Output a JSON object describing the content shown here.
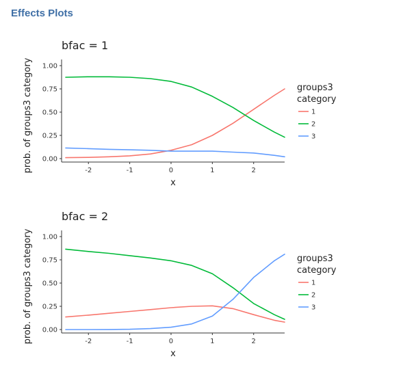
{
  "page": {
    "title": "Effects Plots"
  },
  "chart_data": [
    {
      "type": "line",
      "title": "bfac = 1",
      "xlabel": "x",
      "ylabel": "prob. of groups3 category",
      "xlim": [
        -2.65,
        2.75
      ],
      "ylim": [
        0,
        1
      ],
      "xticks": [
        -2,
        -1,
        0,
        1,
        2
      ],
      "xtick_labels": [
        "-2",
        "-1",
        "0",
        "1",
        "2"
      ],
      "yticks": [
        0,
        0.25,
        0.5,
        0.75,
        1
      ],
      "ytick_labels": [
        "0.00",
        "0.25",
        "0.50",
        "0.75",
        "1.00"
      ],
      "grid": false,
      "legend": {
        "title_lines": [
          "groups3",
          "category"
        ],
        "placement": "right"
      },
      "x": [
        -2.55,
        -2.0,
        -1.5,
        -1.0,
        -0.5,
        0.0,
        0.5,
        1.0,
        1.5,
        2.0,
        2.5,
        2.75
      ],
      "series": [
        {
          "name": "1",
          "color": "#f8766d",
          "values": [
            0.01,
            0.013,
            0.02,
            0.03,
            0.05,
            0.09,
            0.15,
            0.25,
            0.38,
            0.53,
            0.68,
            0.75
          ]
        },
        {
          "name": "2",
          "color": "#00ba38",
          "values": [
            0.875,
            0.88,
            0.88,
            0.875,
            0.86,
            0.83,
            0.77,
            0.67,
            0.55,
            0.41,
            0.285,
            0.23
          ]
        },
        {
          "name": "3",
          "color": "#619cff",
          "values": [
            0.115,
            0.107,
            0.1,
            0.095,
            0.09,
            0.08,
            0.08,
            0.08,
            0.07,
            0.06,
            0.035,
            0.02
          ]
        }
      ]
    },
    {
      "type": "line",
      "title": "bfac = 2",
      "xlabel": "x",
      "ylabel": "prob. of groups3 category",
      "xlim": [
        -2.65,
        2.75
      ],
      "ylim": [
        0,
        1
      ],
      "xticks": [
        -2,
        -1,
        0,
        1,
        2
      ],
      "xtick_labels": [
        "-2",
        "-1",
        "0",
        "1",
        "2"
      ],
      "yticks": [
        0,
        0.25,
        0.5,
        0.75,
        1
      ],
      "ytick_labels": [
        "0.00",
        "0.25",
        "0.50",
        "0.75",
        "1.00"
      ],
      "grid": false,
      "legend": {
        "title_lines": [
          "groups3",
          "category"
        ],
        "placement": "right"
      },
      "x": [
        -2.55,
        -2.0,
        -1.5,
        -1.0,
        -0.5,
        0.0,
        0.5,
        1.0,
        1.5,
        2.0,
        2.5,
        2.75
      ],
      "series": [
        {
          "name": "1",
          "color": "#f8766d",
          "values": [
            0.135,
            0.155,
            0.175,
            0.195,
            0.215,
            0.235,
            0.25,
            0.255,
            0.225,
            0.16,
            0.1,
            0.08
          ]
        },
        {
          "name": "2",
          "color": "#00ba38",
          "values": [
            0.865,
            0.84,
            0.82,
            0.795,
            0.77,
            0.74,
            0.69,
            0.6,
            0.45,
            0.28,
            0.16,
            0.11
          ]
        },
        {
          "name": "3",
          "color": "#619cff",
          "values": [
            0.0,
            0.0,
            0.001,
            0.003,
            0.01,
            0.025,
            0.06,
            0.145,
            0.325,
            0.56,
            0.74,
            0.81
          ]
        }
      ]
    }
  ]
}
